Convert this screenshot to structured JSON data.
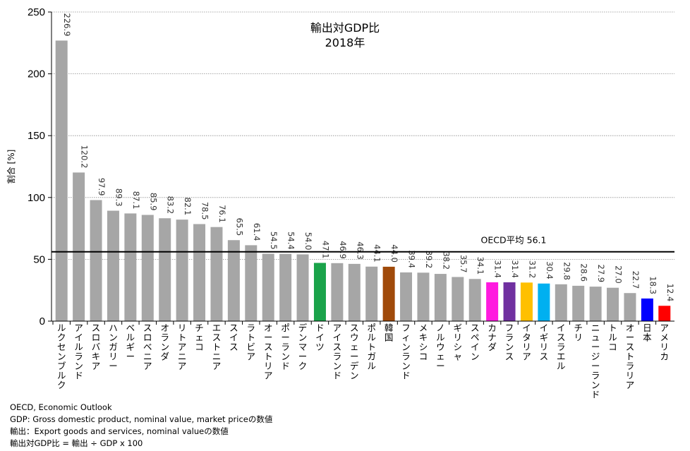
{
  "chart_data": {
    "type": "bar",
    "title": "輸出対GDP比",
    "subtitle": "2018年",
    "ylabel": "割合 [%]",
    "ylim": [
      0,
      250
    ],
    "yticks": [
      0,
      50,
      100,
      150,
      200,
      250
    ],
    "grid": true,
    "categories": [
      "ルクセンブルク",
      "アイルランド",
      "スロバキア",
      "ハンガリー",
      "ベルギー",
      "スロベニア",
      "オランダ",
      "リトアニア",
      "チェコ",
      "エストニア",
      "スイス",
      "ラトビア",
      "オーストリア",
      "ポーランド",
      "デンマーク",
      "ドイツ",
      "アイスランド",
      "スウェーデン",
      "ポルトガル",
      "韓国",
      "フィンランド",
      "メキシコ",
      "ノルウェー",
      "ギリシャ",
      "スペイン",
      "カナダ",
      "フランス",
      "イタリア",
      "イギリス",
      "イスラエル",
      "チリ",
      "ニュージーランド",
      "トルコ",
      "オーストラリア",
      "日本",
      "アメリカ"
    ],
    "values": [
      226.9,
      120.2,
      97.9,
      89.3,
      87.1,
      85.9,
      83.2,
      82.1,
      78.5,
      76.1,
      65.5,
      61.4,
      54.5,
      54.4,
      54.0,
      47.1,
      46.9,
      46.3,
      44.1,
      44.0,
      39.4,
      39.2,
      38.2,
      35.7,
      34.1,
      31.4,
      31.4,
      31.2,
      30.4,
      29.8,
      28.6,
      27.9,
      27.0,
      22.7,
      18.3,
      12.4
    ],
    "value_labels": [
      "226.9",
      "120.2",
      "97.9",
      "89.3",
      "87.1",
      "85.9",
      "83.2",
      "82.1",
      "78.5",
      "76.1",
      "65.5",
      "61.4",
      "54.5",
      "54.4",
      "54.0",
      "47.1",
      "46.9",
      "46.3",
      "44.1",
      "44.0",
      "39.4",
      "39.2",
      "38.2",
      "35.7",
      "34.1",
      "31.4",
      "31.4",
      "31.2",
      "30.4",
      "29.8",
      "28.6",
      "27.9",
      "27.0",
      "22.7",
      "18.3",
      "12.4"
    ],
    "colors": [
      "#a6a6a6",
      "#a6a6a6",
      "#a6a6a6",
      "#a6a6a6",
      "#a6a6a6",
      "#a6a6a6",
      "#a6a6a6",
      "#a6a6a6",
      "#a6a6a6",
      "#a6a6a6",
      "#a6a6a6",
      "#a6a6a6",
      "#a6a6a6",
      "#a6a6a6",
      "#a6a6a6",
      "#1aa34a",
      "#a6a6a6",
      "#a6a6a6",
      "#a6a6a6",
      "#a04a0a",
      "#a6a6a6",
      "#a6a6a6",
      "#a6a6a6",
      "#a6a6a6",
      "#a6a6a6",
      "#ff1adf",
      "#7030a0",
      "#ffc000",
      "#00b0f0",
      "#a6a6a6",
      "#a6a6a6",
      "#a6a6a6",
      "#a6a6a6",
      "#a6a6a6",
      "#0000ff",
      "#ff0000"
    ],
    "reference_line": {
      "value": 56.1,
      "label": "OECD平均 56.1"
    }
  },
  "notes": [
    "OECD, Economic Outlook",
    "GDP: Gross domestic product, nominal value, market priceの数値",
    "輸出：Export goods and services, nominal valueの数値",
    "輸出対GDP比 = 輸出 ÷ GDP x 100"
  ]
}
